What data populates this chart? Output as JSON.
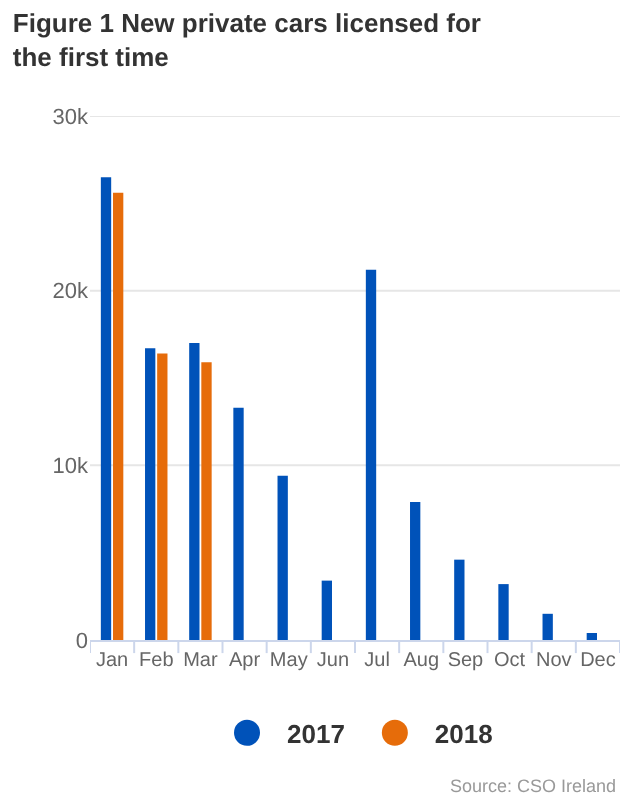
{
  "chart_data": {
    "type": "bar",
    "title": "Figure 1 New private cars licensed for the first time",
    "categories": [
      "Jan",
      "Feb",
      "Mar",
      "Apr",
      "May",
      "Jun",
      "Jul",
      "Aug",
      "Sep",
      "Oct",
      "Nov",
      "Dec"
    ],
    "series": [
      {
        "name": "2017",
        "color": "#0052b9",
        "values": [
          26500,
          16700,
          17000,
          13300,
          9400,
          3400,
          21200,
          7900,
          4600,
          3200,
          1500,
          400
        ]
      },
      {
        "name": "2018",
        "color": "#e66c0a",
        "values": [
          25600,
          16400,
          15900,
          null,
          null,
          null,
          null,
          null,
          null,
          null,
          null,
          null
        ]
      }
    ],
    "ylim": [
      0,
      30000
    ],
    "yticks": [
      {
        "value": 0,
        "label": "0"
      },
      {
        "value": 10000,
        "label": "10k"
      },
      {
        "value": 20000,
        "label": "20k"
      },
      {
        "value": 30000,
        "label": "30k"
      }
    ],
    "grid": "y",
    "legend": "bottom",
    "annotations": [
      "Source: CSO Ireland"
    ]
  }
}
